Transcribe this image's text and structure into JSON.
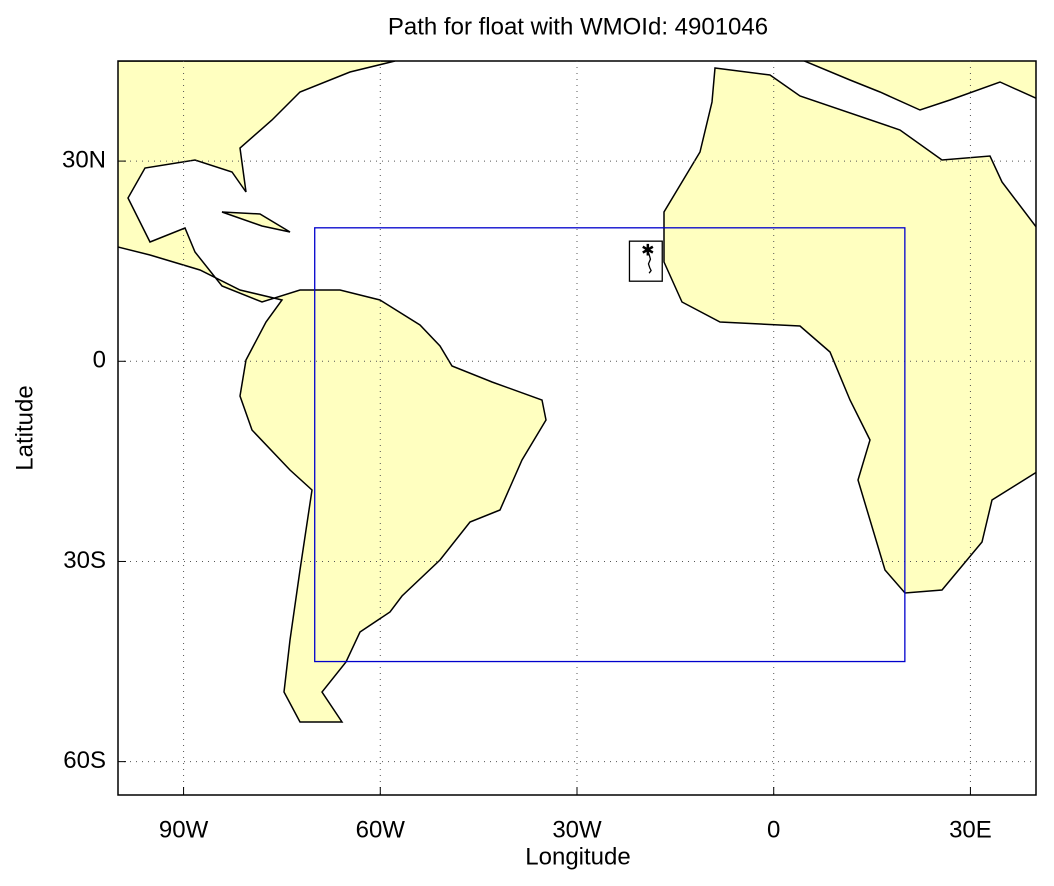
{
  "chart_data": {
    "type": "map",
    "title": "Path for float with WMOId: 4901046",
    "xlabel": "Longitude",
    "ylabel": "Latitude",
    "xlim": [
      -100,
      40
    ],
    "ylim": [
      -65,
      45
    ],
    "xticks": [
      {
        "value": -90,
        "label": "90W"
      },
      {
        "value": -60,
        "label": "60W"
      },
      {
        "value": -30,
        "label": "30W"
      },
      0,
      {
        "value": 30,
        "label": "30E"
      }
    ],
    "yticks": [
      {
        "value": 30,
        "label": "30N"
      },
      0,
      {
        "value": -30,
        "label": "30S"
      },
      {
        "value": -60,
        "label": "60S"
      }
    ],
    "grid": true,
    "region": {
      "lon": [
        -70,
        20
      ],
      "lat": [
        -45,
        20
      ],
      "color": "#0000cc"
    },
    "float_box": {
      "lon": [
        -22,
        -17
      ],
      "lat": [
        12,
        18
      ],
      "color": "#000000"
    },
    "track": {
      "x": [
        -19.2,
        -19.0,
        -18.8,
        -19.1,
        -18.9,
        -18.7,
        -19.0
      ],
      "y": [
        16.5,
        16.0,
        15.3,
        14.6,
        14.0,
        13.6,
        13.2
      ],
      "color": "#000000"
    }
  }
}
